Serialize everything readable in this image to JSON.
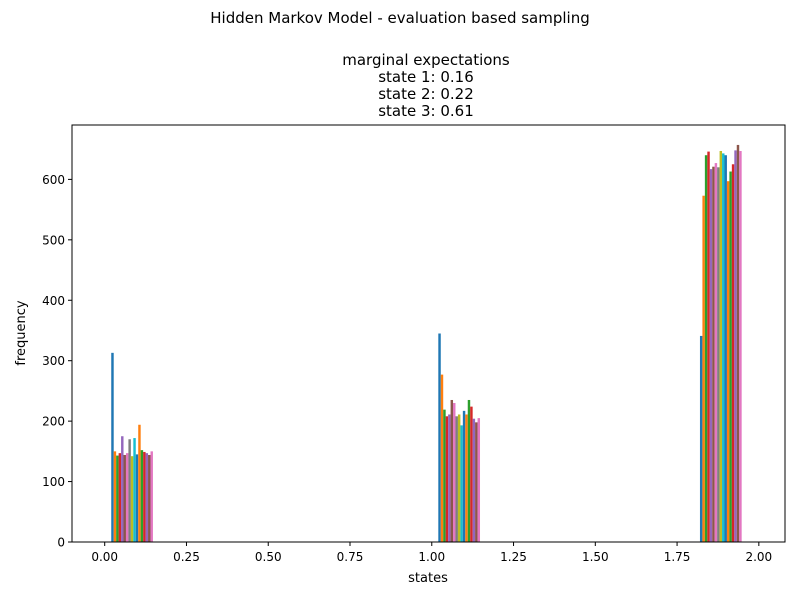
{
  "figure": {
    "suptitle": "Hidden Markov Model - evaluation based sampling",
    "title_lines": [
      "marginal expectations",
      "state 1: 0.16",
      "state 2: 0.22",
      "state 3: 0.61"
    ]
  },
  "chart_data": {
    "type": "bar",
    "xlabel": "states",
    "ylabel": "frequency",
    "xlim": [
      -0.1,
      2.08
    ],
    "ylim": [
      0,
      690
    ],
    "xticks": [
      0.0,
      0.25,
      0.5,
      0.75,
      1.0,
      1.25,
      1.5,
      1.75,
      2.0
    ],
    "xtick_labels": [
      "0.00",
      "0.25",
      "0.50",
      "0.75",
      "1.00",
      "1.25",
      "1.50",
      "1.75",
      "2.00"
    ],
    "yticks": [
      0,
      100,
      200,
      300,
      400,
      500,
      600
    ],
    "ytick_labels": [
      "0",
      "100",
      "200",
      "300",
      "400",
      "500",
      "600"
    ],
    "grid": false,
    "legend": "none",
    "palette": [
      "#1f77b4",
      "#ff7f0e",
      "#2ca02c",
      "#d62728",
      "#9467bd",
      "#8c564b",
      "#e377c2",
      "#7f7f7f",
      "#bcbd22",
      "#17becf"
    ],
    "bar_width": 0.0075,
    "group_starts": [
      0.02,
      1.02,
      1.82
    ],
    "groups": [
      {
        "state": 0,
        "values": [
          313,
          150,
          143,
          147,
          175,
          144,
          147,
          170,
          142,
          172,
          145,
          194,
          152,
          149,
          147,
          144,
          150
        ]
      },
      {
        "state": 1,
        "values": [
          345,
          277,
          219,
          208,
          211,
          235,
          230,
          208,
          211,
          193,
          217,
          211,
          235,
          224,
          204,
          198,
          205
        ]
      },
      {
        "state": 2,
        "values": [
          341,
          573,
          640,
          646,
          617,
          621,
          627,
          620,
          647,
          643,
          640,
          597,
          613,
          625,
          648,
          657,
          647
        ]
      }
    ]
  }
}
